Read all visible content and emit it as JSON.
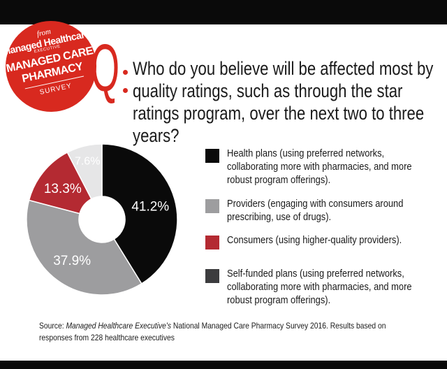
{
  "badge": {
    "from": "from",
    "publication": "Managed Healthcare",
    "publication_sub": "EXECUTIVE",
    "line1": "MANAGED CARE",
    "line2": "PHARMACY",
    "survey": "SURVEY"
  },
  "question": {
    "letter": "Q",
    "text": "Who do you believe will be affected most by quality ratings, such as through the star ratings program, over the next two to three years?"
  },
  "colors": {
    "brand_red": "#d8291f",
    "black": "#0a0a0a"
  },
  "chart_data": {
    "type": "pie",
    "donut": true,
    "start": "12 o'clock, clockwise",
    "slices": [
      {
        "label": "Health plans (using preferred networks, collaborating more with pharmacies, and more robust program offerings).",
        "value": 41.2,
        "display": "41.2%",
        "color": "#0a0a0a",
        "label_color": "#ffffff"
      },
      {
        "label": "Providers (engaging with consumers around prescribing, use of drugs).",
        "value": 37.9,
        "display": "37.9%",
        "color": "#9d9d9f",
        "label_color": "#ffffff"
      },
      {
        "label": "Consumers (using higher-quality providers).",
        "value": 13.3,
        "display": "13.3%",
        "color": "#b42a32",
        "label_color": "#ffffff"
      },
      {
        "label": "Self-funded plans (using preferred networks, collaborating more with pharmacies, and more robust program offerings).",
        "value": 7.6,
        "display": "7.6%",
        "color": "#e6e6e7",
        "label_color": "#ffffff"
      }
    ]
  },
  "legend": [
    {
      "text": "Health plans (using preferred networks, collaborating more with pharmacies, and more robust program offerings).",
      "color": "#0a0a0a"
    },
    {
      "text": "Providers (engaging with consumers around prescribing, use of drugs).",
      "color": "#9d9d9f"
    },
    {
      "text": "Consumers (using higher-quality providers).",
      "color": "#b42a32"
    },
    {
      "text": "Self-funded plans (using preferred networks, collaborating more with pharmacies, and more robust program offerings).",
      "color": "#3c3c3e"
    }
  ],
  "source": {
    "prefix": "Source: ",
    "publication": "Managed Healthcare Executive's",
    "rest": " National Managed Care Pharmacy Survey 2016. Results based on responses from 228 healthcare executives"
  }
}
